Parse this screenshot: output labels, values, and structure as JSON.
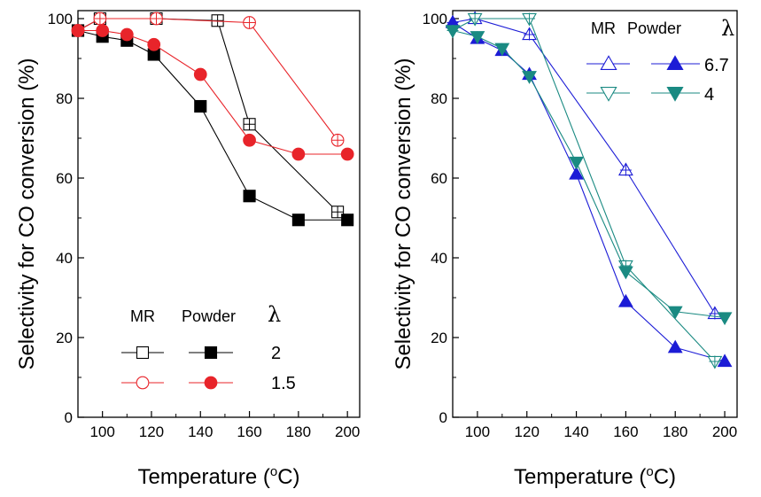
{
  "chart_data": [
    {
      "type": "line",
      "ylabel": "Selectivity for CO conversion (%)",
      "xlabel_main": "Temperature (",
      "xlabel_sup": "o",
      "xlabel_unit": "C)",
      "xlim": [
        90,
        205
      ],
      "ylim": [
        0,
        102
      ],
      "xticks": [
        100,
        120,
        140,
        160,
        180,
        200
      ],
      "yticks": [
        0,
        20,
        40,
        60,
        80,
        100
      ],
      "legend": {
        "header_mr": "MR",
        "header_powder": "Powder",
        "header_lambda": "λ",
        "position": "bottom-center"
      },
      "series": [
        {
          "name": "2",
          "group": "MR",
          "marker": "square-cross",
          "filled": false,
          "color": "#000000",
          "x": [
            90,
            99,
            122,
            147,
            160,
            196
          ],
          "y": [
            97,
            100,
            100,
            99.5,
            73.5,
            51.5
          ]
        },
        {
          "name": "2",
          "group": "Powder",
          "marker": "square",
          "filled": true,
          "color": "#000000",
          "x": [
            90,
            100,
            110,
            121,
            140,
            160,
            180,
            200
          ],
          "y": [
            97,
            95.5,
            94.5,
            91,
            78,
            55.5,
            49.5,
            49.5
          ]
        },
        {
          "name": "1.5",
          "group": "MR",
          "marker": "circle-cross",
          "filled": false,
          "color": "#e8242a",
          "x": [
            90,
            99,
            122,
            160,
            196
          ],
          "y": [
            97,
            100,
            100,
            99,
            69.5
          ]
        },
        {
          "name": "1.5",
          "group": "Powder",
          "marker": "circle",
          "filled": true,
          "color": "#e8242a",
          "x": [
            90,
            100,
            110,
            121,
            140,
            160,
            180,
            200
          ],
          "y": [
            97,
            97,
            96,
            93.5,
            86,
            69.5,
            66,
            66
          ]
        }
      ]
    },
    {
      "type": "line",
      "ylabel": "Selectivity for CO conversion (%)",
      "xlabel_main": "Temperature (",
      "xlabel_sup": "o",
      "xlabel_unit": "C)",
      "xlim": [
        90,
        205
      ],
      "ylim": [
        0,
        102
      ],
      "xticks": [
        100,
        120,
        140,
        160,
        180,
        200
      ],
      "yticks": [
        0,
        20,
        40,
        60,
        80,
        100
      ],
      "legend": {
        "header_mr": "MR",
        "header_powder": "Powder",
        "header_lambda": "λ",
        "position": "top-right"
      },
      "series": [
        {
          "name": "6.7",
          "group": "MR",
          "marker": "triangle-up-cross",
          "filled": false,
          "color": "#1c1cd6",
          "x": [
            90,
            99,
            121,
            160,
            196
          ],
          "y": [
            99,
            100,
            96,
            62,
            26
          ]
        },
        {
          "name": "6.7",
          "group": "Powder",
          "marker": "triangle-up",
          "filled": true,
          "color": "#1c1cd6",
          "x": [
            90,
            100,
            110,
            121,
            140,
            160,
            180,
            200
          ],
          "y": [
            99,
            95,
            92,
            86,
            61,
            29,
            17.5,
            14
          ]
        },
        {
          "name": "4",
          "group": "MR",
          "marker": "triangle-down-cross",
          "filled": false,
          "color": "#1a8a82",
          "x": [
            90,
            99,
            121,
            160,
            196
          ],
          "y": [
            97,
            100,
            100,
            38,
            14
          ]
        },
        {
          "name": "4",
          "group": "Powder",
          "marker": "triangle-down",
          "filled": true,
          "color": "#1a8a82",
          "x": [
            90,
            100,
            110,
            121,
            140,
            160,
            180,
            200
          ],
          "y": [
            97,
            95.5,
            92.5,
            85.5,
            64,
            36.5,
            26.5,
            25
          ]
        }
      ]
    }
  ]
}
